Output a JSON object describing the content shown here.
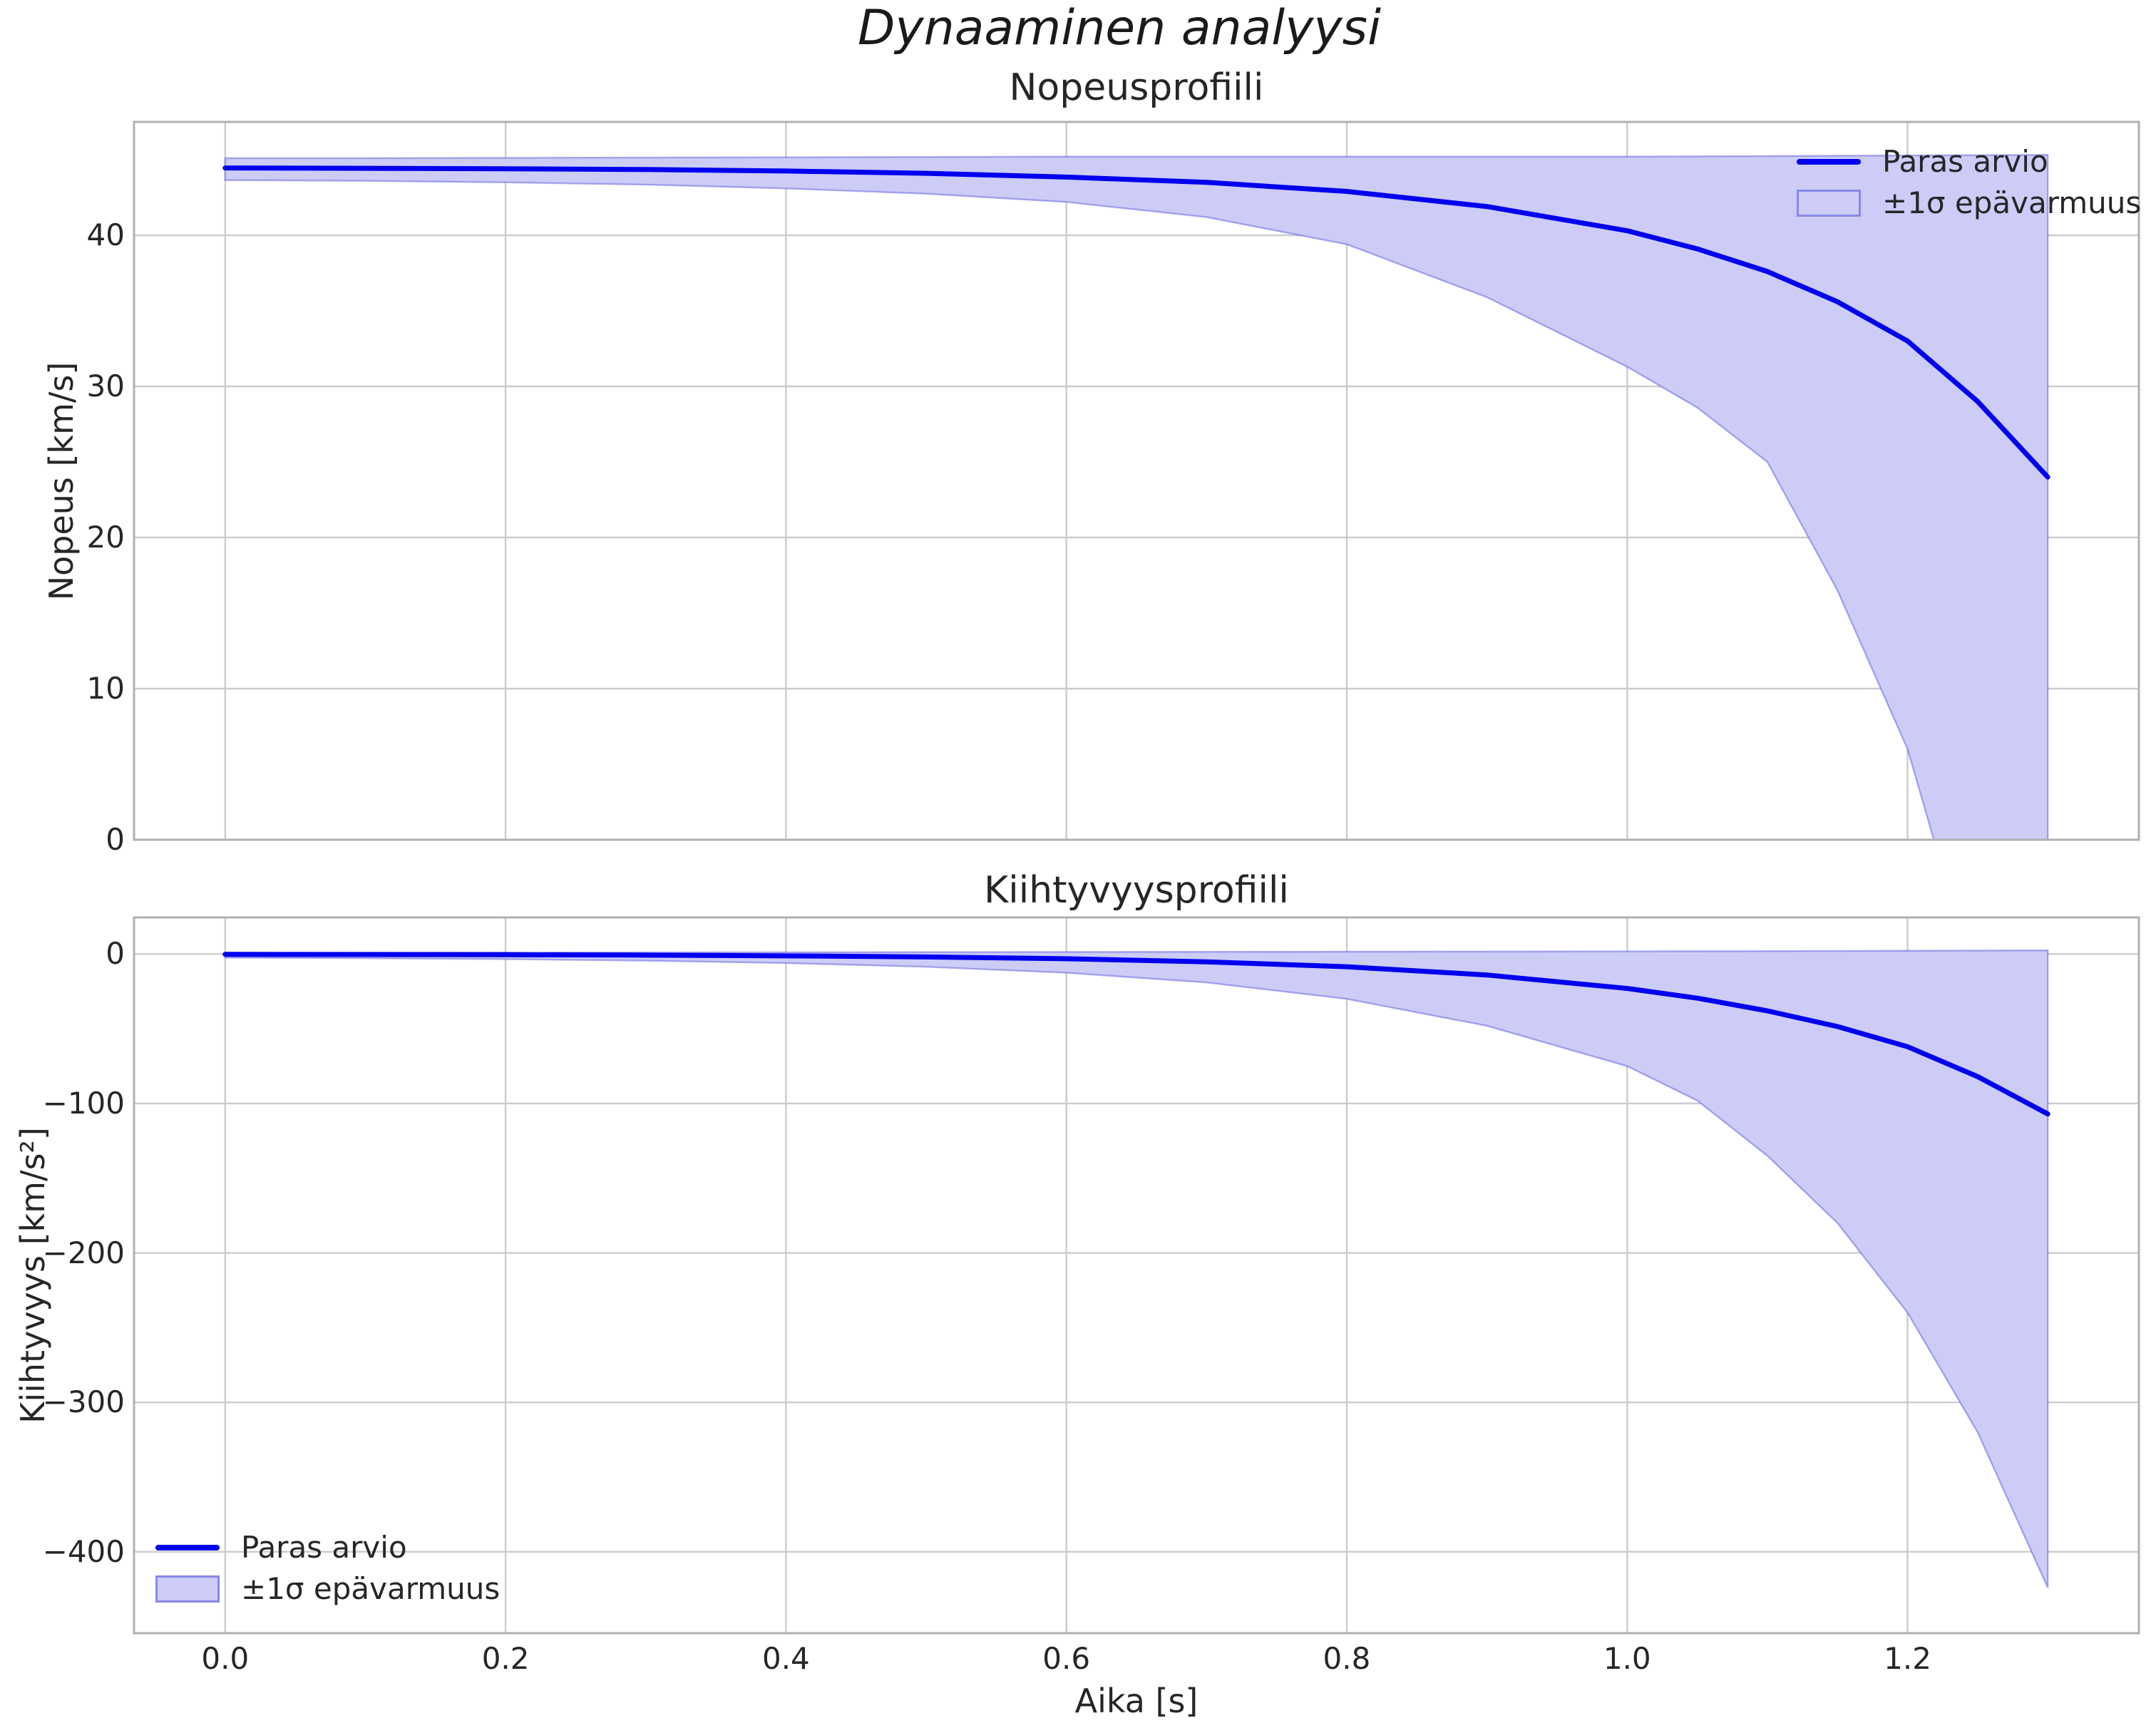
{
  "figure": {
    "suptitle": "Dynaaminen analyysi"
  },
  "legend": {
    "line_label": "Paras arvio",
    "band_label": "±1σ epävarmuus"
  },
  "colors": {
    "line": "#0000ee",
    "band_fill": "#ccccf7",
    "band_edge": "rgba(80,80,220,0.45)",
    "grid": "#cccccc",
    "spine": "#b0b0b0",
    "text": "#262626"
  },
  "chart_data": [
    {
      "type": "line",
      "title": "Nopeusprofiili",
      "ylabel": "Nopeus [km/s]",
      "xlabel": "",
      "xlim": [
        -0.065,
        1.365
      ],
      "ylim": [
        0,
        47.5
      ],
      "grid": true,
      "legend_position": "upper right",
      "xticks": {
        "values": [
          0.0,
          0.2,
          0.4,
          0.6,
          0.8,
          1.0,
          1.2
        ],
        "labels": [
          "0.0",
          "0.2",
          "0.4",
          "0.6",
          "0.8",
          "1.0",
          "1.2"
        ],
        "labels_visible": false
      },
      "yticks": {
        "values": [
          0,
          10,
          20,
          30,
          40
        ],
        "labels": [
          "0",
          "10",
          "20",
          "30",
          "40"
        ]
      },
      "x": [
        0,
        0.1,
        0.2,
        0.3,
        0.4,
        0.5,
        0.6,
        0.7,
        0.8,
        0.9,
        1.0,
        1.05,
        1.1,
        1.15,
        1.2,
        1.25,
        1.3
      ],
      "series": [
        {
          "name": "Paras arvio",
          "values": [
            44.45,
            44.43,
            44.4,
            44.35,
            44.25,
            44.1,
            43.85,
            43.5,
            42.9,
            41.9,
            40.3,
            39.1,
            37.6,
            35.6,
            33.0,
            29.0,
            24.0
          ]
        }
      ],
      "band": {
        "name": "±1σ epävarmuus",
        "upper": [
          45.1,
          45.1,
          45.12,
          45.14,
          45.16,
          45.18,
          45.2,
          45.2,
          45.2,
          45.2,
          45.2,
          45.22,
          45.24,
          45.26,
          45.28,
          45.3,
          45.32
        ],
        "lower": [
          43.65,
          43.6,
          43.5,
          43.35,
          43.1,
          42.75,
          42.2,
          41.2,
          39.4,
          35.9,
          31.3,
          28.6,
          25.0,
          16.5,
          6.0,
          -10.0,
          -30.0
        ]
      }
    },
    {
      "type": "line",
      "title": "Kiihtyvyysprofiili",
      "ylabel": "Kiihtyvyys [km/s²]",
      "xlabel": "Aika [s]",
      "xlim": [
        -0.065,
        1.365
      ],
      "ylim": [
        -454.5,
        24.5
      ],
      "grid": true,
      "legend_position": "lower left",
      "xticks": {
        "values": [
          0.0,
          0.2,
          0.4,
          0.6,
          0.8,
          1.0,
          1.2
        ],
        "labels": [
          "0.0",
          "0.2",
          "0.4",
          "0.6",
          "0.8",
          "1.0",
          "1.2"
        ],
        "labels_visible": true
      },
      "yticks": {
        "values": [
          0,
          -100,
          -200,
          -300,
          -400
        ],
        "labels": [
          "0",
          "−100",
          "−200",
          "−300",
          "−400"
        ]
      },
      "x": [
        0,
        0.1,
        0.2,
        0.3,
        0.4,
        0.5,
        0.6,
        0.7,
        0.8,
        0.9,
        1.0,
        1.05,
        1.1,
        1.15,
        1.2,
        1.25,
        1.3
      ],
      "series": [
        {
          "name": "Paras arvio",
          "values": [
            -0.2,
            -0.3,
            -0.45,
            -0.7,
            -1.2,
            -1.9,
            -3.1,
            -5.2,
            -8.5,
            -14.0,
            -23.0,
            -29.5,
            -38.0,
            -48.5,
            -62.0,
            -82.0,
            -107.0
          ]
        }
      ],
      "band": {
        "name": "±1σ epävarmuus",
        "upper": [
          0.9,
          0.95,
          1.0,
          1.1,
          1.2,
          1.3,
          1.4,
          1.5,
          1.6,
          1.7,
          1.8,
          1.9,
          2.0,
          2.1,
          2.2,
          2.35,
          2.5
        ],
        "lower": [
          -2.4,
          -2.8,
          -3.4,
          -4.4,
          -6.0,
          -8.5,
          -12.5,
          -19.0,
          -30.0,
          -48.0,
          -75.0,
          -98.0,
          -135.0,
          -180.0,
          -240.0,
          -320.0,
          -424.0
        ]
      }
    }
  ]
}
